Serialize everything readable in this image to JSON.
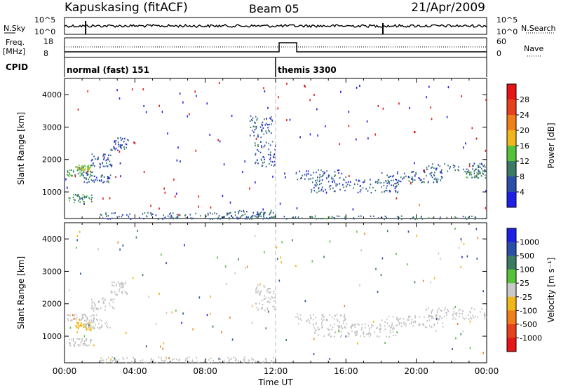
{
  "header": {
    "station": "Kapuskasing (fitACF)",
    "beam": "Beam 05",
    "date": "21/Apr/2009"
  },
  "strip_labels": {
    "nsky": "N.Sky",
    "nsearch": "N.Search",
    "freq": "Freq.",
    "freq_unit": "[MHz]",
    "nave": "Nave",
    "cpid": "CPID",
    "nsky_ticks": [
      "10^5",
      "10^0"
    ],
    "freq_ticks": [
      "18",
      "8"
    ],
    "nave_ticks": [
      "60",
      "0"
    ]
  },
  "cpid_modes": [
    {
      "label": "normal (fast) 151",
      "start_hour": 0
    },
    {
      "label": "themis 3300",
      "start_hour": 12.0
    }
  ],
  "colors": {
    "power_scale": [
      "#1f1fe6",
      "#2a4fa8",
      "#3b7a63",
      "#55c23a",
      "#f0b61a",
      "#f07f1a",
      "#e8401a",
      "#e61414"
    ],
    "velocity_scale": [
      "#1f1fe6",
      "#2a4fa8",
      "#3b7a63",
      "#55c23a",
      "#c9c9c9",
      "#f0b61a",
      "#f07f1a",
      "#e8401a",
      "#e61414"
    ],
    "ground_scatter": "#c0c0c0"
  },
  "chart_data": [
    {
      "type": "heatmap",
      "title": "",
      "xlabel": "",
      "ylabel": "Slant Range [km]",
      "xlim": [
        0,
        24
      ],
      "ylim": [
        180,
        4500
      ],
      "yticks": [
        1000,
        2000,
        3000,
        4000
      ],
      "colorbar": {
        "label": "Power [dB]",
        "ticks": [
          "4",
          "8",
          "12",
          "16",
          "20",
          "24",
          "28"
        ],
        "range": [
          0,
          30
        ]
      },
      "bands": [
        {
          "x": [
            0.1,
            1.8
          ],
          "y": [
            1500,
            1700
          ],
          "value": 11
        },
        {
          "x": [
            0.6,
            1.5
          ],
          "y": [
            1700,
            1850
          ],
          "value": 13
        },
        {
          "x": [
            1.0,
            2.6
          ],
          "y": [
            1250,
            1550
          ],
          "value": 6
        },
        {
          "x": [
            1.5,
            2.8
          ],
          "y": [
            1800,
            2200
          ],
          "value": 6
        },
        {
          "x": [
            2.6,
            3.6
          ],
          "y": [
            2300,
            2700
          ],
          "value": 6
        },
        {
          "x": [
            0.2,
            1.6
          ],
          "y": [
            700,
            950
          ],
          "value": 10
        },
        {
          "x": [
            2.0,
            12.0
          ],
          "y": [
            180,
            380
          ],
          "value": 7
        },
        {
          "x": [
            9.0,
            12.0
          ],
          "y": [
            180,
            450
          ],
          "value": 8
        },
        {
          "x": [
            10.8,
            12.0
          ],
          "y": [
            1800,
            2600
          ],
          "value": 6
        },
        {
          "x": [
            10.5,
            11.8
          ],
          "y": [
            2700,
            3400
          ],
          "value": 6
        },
        {
          "x": [
            13.1,
            16.0
          ],
          "y": [
            1400,
            1700
          ],
          "value": 6
        },
        {
          "x": [
            14.0,
            19.0
          ],
          "y": [
            1000,
            1400
          ],
          "value": 6
        },
        {
          "x": [
            18.0,
            21.5
          ],
          "y": [
            1300,
            1650
          ],
          "value": 6
        },
        {
          "x": [
            20.5,
            24.0
          ],
          "y": [
            1650,
            1900
          ],
          "value": 7
        },
        {
          "x": [
            22.8,
            24.0
          ],
          "y": [
            1450,
            1700
          ],
          "value": 10
        },
        {
          "x": [
            12.0,
            24.0
          ],
          "y": [
            180,
            280
          ],
          "value": 8
        },
        {
          "x": [
            0.0,
            24.0
          ],
          "y": [
            300,
            4400
          ],
          "value": 15
        }
      ]
    },
    {
      "type": "heatmap",
      "title": "",
      "xlabel": "Time UT",
      "ylabel": "Slant Range [km]",
      "xlim": [
        0,
        24
      ],
      "ylim": [
        180,
        4500
      ],
      "yticks": [
        1000,
        2000,
        3000,
        4000
      ],
      "xticks": [
        "00:00",
        "04:00",
        "08:00",
        "12:00",
        "16:00",
        "20:00",
        "00:00"
      ],
      "colorbar": {
        "label": "Velocity [m s⁻¹]",
        "ticks": [
          "1000",
          "500",
          "100",
          "25",
          "-25",
          "-100",
          "-500",
          "-1000"
        ],
        "range": [
          -1200,
          1200
        ]
      },
      "bands": [
        {
          "x": [
            0.1,
            1.8
          ],
          "y": [
            1500,
            1700
          ],
          "value": 0
        },
        {
          "x": [
            0.6,
            1.5
          ],
          "y": [
            1200,
            1450
          ],
          "value": -300
        },
        {
          "x": [
            1.0,
            2.6
          ],
          "y": [
            1250,
            1550
          ],
          "value": 0
        },
        {
          "x": [
            1.5,
            2.8
          ],
          "y": [
            1800,
            2200
          ],
          "value": 0
        },
        {
          "x": [
            2.6,
            3.6
          ],
          "y": [
            2300,
            2700
          ],
          "value": 0
        },
        {
          "x": [
            0.2,
            1.6
          ],
          "y": [
            700,
            950
          ],
          "value": 0
        },
        {
          "x": [
            2.0,
            12.0
          ],
          "y": [
            180,
            380
          ],
          "value": 0
        },
        {
          "x": [
            10.8,
            12.0
          ],
          "y": [
            1800,
            2600
          ],
          "value": 0
        },
        {
          "x": [
            13.1,
            16.0
          ],
          "y": [
            1400,
            1700
          ],
          "value": 0
        },
        {
          "x": [
            14.0,
            19.0
          ],
          "y": [
            1000,
            1400
          ],
          "value": 0
        },
        {
          "x": [
            18.0,
            21.5
          ],
          "y": [
            1300,
            1650
          ],
          "value": 0
        },
        {
          "x": [
            20.5,
            24.0
          ],
          "y": [
            1550,
            1900
          ],
          "value": 0
        },
        {
          "x": [
            0.0,
            24.0
          ],
          "y": [
            300,
            4400
          ],
          "value": 200
        }
      ]
    }
  ]
}
